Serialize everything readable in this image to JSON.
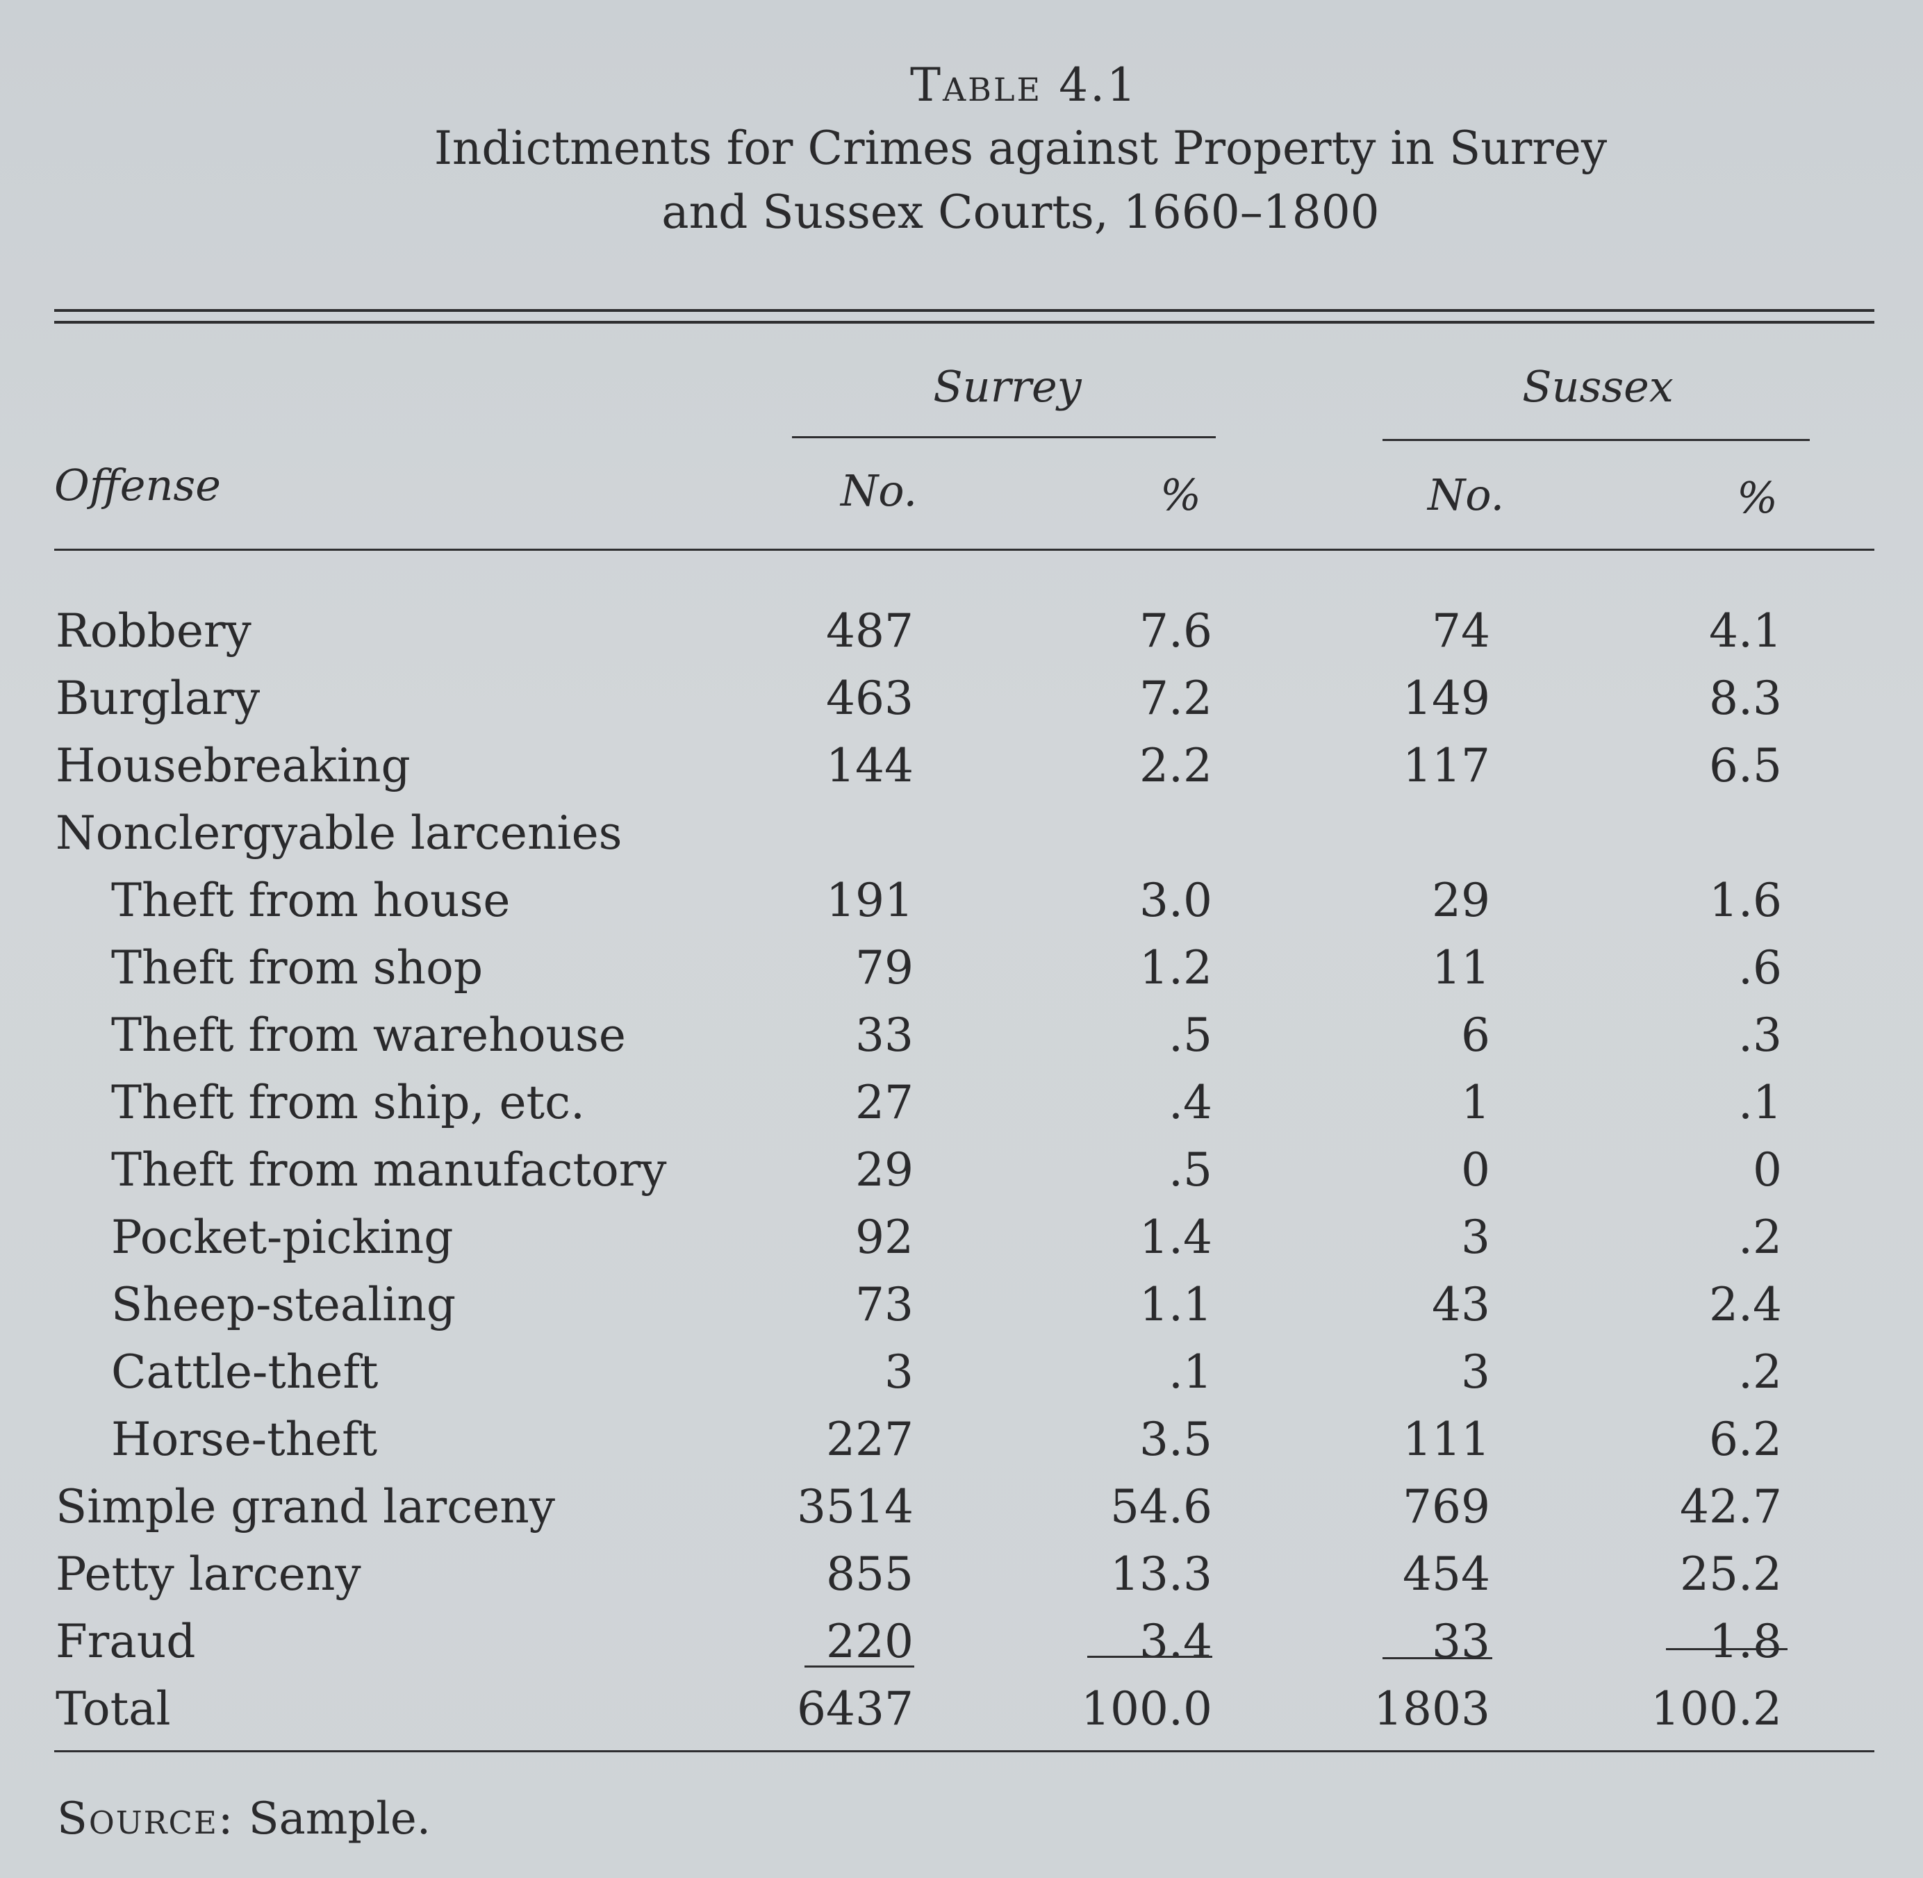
{
  "table": {
    "label": "Table 4.1",
    "caption_line1": "Indictments for Crimes against Property in Surrey",
    "caption_line2": "and Sussex Courts, 1660–1800",
    "groups": [
      "Surrey",
      "Sussex"
    ],
    "columns": {
      "offense": "Offense",
      "surrey_no": "No.",
      "surrey_pct": "%",
      "sussex_no": "No.",
      "sussex_pct": "%"
    },
    "rows": [
      {
        "offense": "Robbery",
        "surrey_no": "487",
        "surrey_pct": "7.6",
        "sussex_no": "74",
        "sussex_pct": "4.1"
      },
      {
        "offense": "Burglary",
        "surrey_no": "463",
        "surrey_pct": "7.2",
        "sussex_no": "149",
        "sussex_pct": "8.3"
      },
      {
        "offense": "Housebreaking",
        "surrey_no": "144",
        "surrey_pct": "2.2",
        "sussex_no": "117",
        "sussex_pct": "6.5"
      },
      {
        "offense": "Nonclergyable larcenies",
        "surrey_no": "",
        "surrey_pct": "",
        "sussex_no": "",
        "sussex_pct": ""
      },
      {
        "offense": "Theft from house",
        "surrey_no": "191",
        "surrey_pct": "3.0",
        "sussex_no": "29",
        "sussex_pct": "1.6"
      },
      {
        "offense": "Theft from shop",
        "surrey_no": "79",
        "surrey_pct": "1.2",
        "sussex_no": "11",
        "sussex_pct": ".6"
      },
      {
        "offense": "Theft from warehouse",
        "surrey_no": "33",
        "surrey_pct": ".5",
        "sussex_no": "6",
        "sussex_pct": ".3"
      },
      {
        "offense": "Theft from ship, etc.",
        "surrey_no": "27",
        "surrey_pct": ".4",
        "sussex_no": "1",
        "sussex_pct": ".1"
      },
      {
        "offense": "Theft from manufactory",
        "surrey_no": "29",
        "surrey_pct": ".5",
        "sussex_no": "0",
        "sussex_pct": "0"
      },
      {
        "offense": "Pocket-picking",
        "surrey_no": "92",
        "surrey_pct": "1.4",
        "sussex_no": "3",
        "sussex_pct": ".2"
      },
      {
        "offense": "Sheep-stealing",
        "surrey_no": "73",
        "surrey_pct": "1.1",
        "sussex_no": "43",
        "sussex_pct": "2.4"
      },
      {
        "offense": "Cattle-theft",
        "surrey_no": "3",
        "surrey_pct": ".1",
        "sussex_no": "3",
        "sussex_pct": ".2"
      },
      {
        "offense": "Horse-theft",
        "surrey_no": "227",
        "surrey_pct": "3.5",
        "sussex_no": "111",
        "sussex_pct": "6.2"
      },
      {
        "offense": "Simple grand larceny",
        "surrey_no": "3514",
        "surrey_pct": "54.6",
        "sussex_no": "769",
        "sussex_pct": "42.7"
      },
      {
        "offense": "Petty larceny",
        "surrey_no": "855",
        "surrey_pct": "13.3",
        "sussex_no": "454",
        "sussex_pct": "25.2"
      },
      {
        "offense": "Fraud",
        "surrey_no": "220",
        "surrey_pct": "3.4",
        "sussex_no": "33",
        "sussex_pct": "1.8"
      },
      {
        "offense": "Total",
        "surrey_no": "6437",
        "surrey_pct": "100.0",
        "sussex_no": "1803",
        "sussex_pct": "100.2"
      }
    ],
    "source_label": "Source:",
    "source_text": "Sample."
  }
}
